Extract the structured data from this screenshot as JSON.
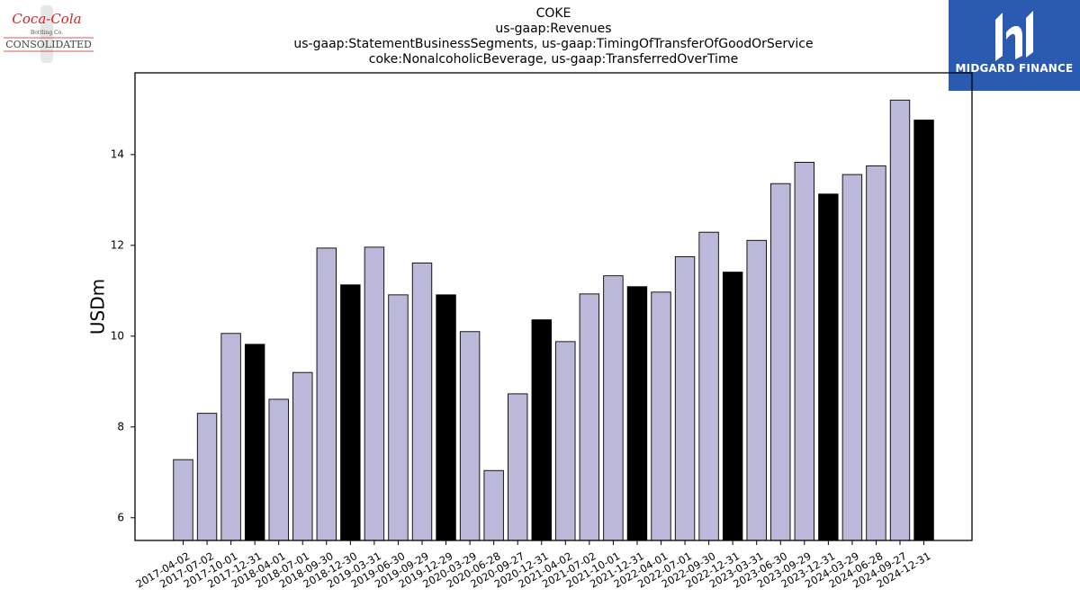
{
  "header": {
    "title_lines": [
      "COKE",
      "us-gaap:Revenues",
      "us-gaap:StatementBusinessSegments, us-gaap:TimingOfTransferOfGoodOrService",
      "coke:NonalcoholicBeverage, us-gaap:TransferredOverTime"
    ]
  },
  "logos": {
    "left": {
      "line1": "Coca-Cola",
      "line2": "Bottling Co.",
      "line3": "CONSOLIDATED"
    },
    "right": {
      "text": "MIDGARD FINANCE"
    }
  },
  "colors": {
    "bar_quarter": "#bcb8d9",
    "bar_year_end": "#000000",
    "logo_right_bg": "#2a5bb0",
    "coca_cola_red": "#d2232a"
  },
  "chart_data": {
    "type": "bar",
    "ylabel": "USDm",
    "xlabel": "",
    "ylim": [
      5.5,
      15.8
    ],
    "yticks": [
      6,
      8,
      10,
      12,
      14
    ],
    "grid": false,
    "categories": [
      "2017-04-02",
      "2017-07-02",
      "2017-10-01",
      "2017-12-31",
      "2018-04-01",
      "2018-07-01",
      "2018-09-30",
      "2018-12-30",
      "2019-03-31",
      "2019-06-30",
      "2019-09-29",
      "2019-12-29",
      "2020-03-29",
      "2020-06-28",
      "2020-09-27",
      "2020-12-31",
      "2021-04-02",
      "2021-07-02",
      "2021-10-01",
      "2021-12-31",
      "2022-04-01",
      "2022-07-01",
      "2022-09-30",
      "2022-12-31",
      "2023-03-31",
      "2023-06-30",
      "2023-09-29",
      "2023-12-31",
      "2024-03-29",
      "2024-06-28",
      "2024-09-27",
      "2024-12-31"
    ],
    "values": [
      7.28,
      8.3,
      10.06,
      9.82,
      8.61,
      9.2,
      11.94,
      11.13,
      11.96,
      10.91,
      11.61,
      10.91,
      10.1,
      7.04,
      8.73,
      10.36,
      9.88,
      10.93,
      11.33,
      11.09,
      10.97,
      11.75,
      12.29,
      11.41,
      12.11,
      13.36,
      13.83,
      13.13,
      13.56,
      13.75,
      15.2,
      14.76
    ],
    "year_end": [
      false,
      false,
      false,
      true,
      false,
      false,
      false,
      true,
      false,
      false,
      false,
      true,
      false,
      false,
      false,
      true,
      false,
      false,
      false,
      true,
      false,
      false,
      false,
      true,
      false,
      false,
      false,
      true,
      false,
      false,
      false,
      true
    ]
  }
}
